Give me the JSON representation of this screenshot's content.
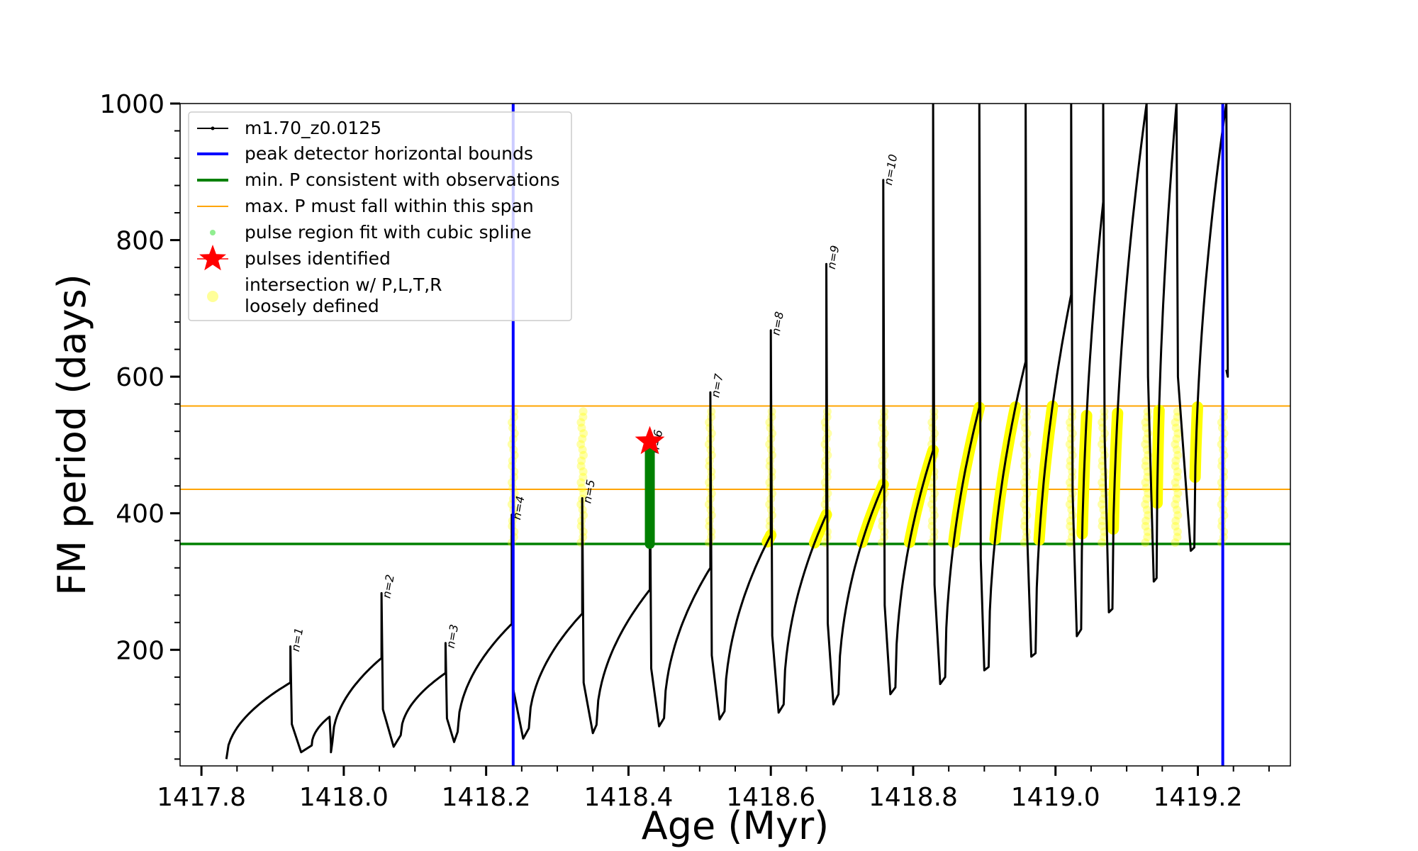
{
  "chart_data": {
    "type": "line",
    "title": "",
    "xlabel": "Age (Myr)",
    "ylabel": "FM period (days)",
    "xlim": [
      1417.77,
      1419.33
    ],
    "ylim": [
      30,
      1000
    ],
    "x_ticks": [
      1417.8,
      1418.0,
      1418.2,
      1418.4,
      1418.6,
      1418.8,
      1419.0,
      1419.2
    ],
    "x_tick_labels": [
      "1417.8",
      "1418.0",
      "1418.2",
      "1418.4",
      "1418.6",
      "1418.8",
      "1419.0",
      "1419.2"
    ],
    "y_ticks": [
      200,
      400,
      600,
      800,
      1000
    ],
    "y_tick_labels": [
      "200",
      "400",
      "600",
      "800",
      "1000"
    ],
    "legend": {
      "placement": "upper-left",
      "entries": [
        {
          "label": "m1.70_z0.0125",
          "color": "#000000",
          "marker": "line-dot"
        },
        {
          "label": "peak detector horizontal bounds",
          "color": "#0000ff",
          "marker": "line"
        },
        {
          "label": "min. P consistent with observations",
          "color": "#008000",
          "marker": "line"
        },
        {
          "label": "max. P must fall within this span",
          "color": "#ffa500",
          "marker": "line"
        },
        {
          "label": "pulse region fit with cubic spline",
          "color": "#90ee90",
          "marker": "dot"
        },
        {
          "label": "pulses identified",
          "color": "#ff0000",
          "marker": "star"
        },
        {
          "label": "intersection w/ P,L,T,R",
          "label2": "loosely defined",
          "color": "#ffff99",
          "marker": "circle"
        }
      ]
    },
    "vertical_lines": [
      {
        "name": "peak detector horizontal bounds",
        "color": "#0000ff",
        "x": [
          1418.238,
          1419.235
        ]
      }
    ],
    "horizontal_lines": [
      {
        "name": "min. P consistent with observations",
        "color": "#008000",
        "y": 355
      },
      {
        "name": "max. P must fall within this span",
        "color": "#ffa500",
        "y": [
          435,
          557
        ]
      }
    ],
    "series_name": "m1.70_z0.0125",
    "pulses": [
      {
        "label": "n=1",
        "start_x": 1417.835,
        "start_y": 40,
        "end_x": 1417.925,
        "end_y": 152,
        "peak_y": 205,
        "min_x": 1417.94,
        "min_y": 50,
        "next_x": 1417.982
      },
      {
        "label": "",
        "start_x": 1417.955,
        "start_y": 60,
        "end_x": 1417.98,
        "end_y": 102,
        "peak_y": 102,
        "min_x": 1417.982,
        "min_y": 50,
        "next_x": 1417.984
      },
      {
        "label": "n=2",
        "start_x": 1417.984,
        "start_y": 65,
        "end_x": 1418.053,
        "end_y": 188,
        "peak_y": 283,
        "min_x": 1418.07,
        "min_y": 58,
        "next_x": 1418.145
      },
      {
        "label": "n=3",
        "start_x": 1418.08,
        "start_y": 75,
        "end_x": 1418.143,
        "end_y": 166,
        "peak_y": 210,
        "min_x": 1418.155,
        "min_y": 65,
        "next_x": 1418.238
      },
      {
        "label": "n=4",
        "start_x": 1418.16,
        "start_y": 80,
        "end_x": 1418.236,
        "end_y": 238,
        "peak_y": 398,
        "min_x": 1418.252,
        "min_y": 70,
        "next_x": 1418.338
      },
      {
        "label": "n=5",
        "start_x": 1418.26,
        "start_y": 85,
        "end_x": 1418.335,
        "end_y": 253,
        "peak_y": 422,
        "min_x": 1418.35,
        "min_y": 78,
        "next_x": 1418.43
      },
      {
        "label": "n=6",
        "start_x": 1418.355,
        "start_y": 90,
        "end_x": 1418.43,
        "end_y": 288,
        "peak_y": 495,
        "min_x": 1418.443,
        "min_y": 88,
        "next_x": 1418.518
      },
      {
        "label": "n=7",
        "start_x": 1418.45,
        "start_y": 100,
        "end_x": 1418.515,
        "end_y": 320,
        "peak_y": 577,
        "min_x": 1418.528,
        "min_y": 98,
        "next_x": 1418.6
      },
      {
        "label": "n=8",
        "start_x": 1418.535,
        "start_y": 110,
        "end_x": 1418.6,
        "end_y": 368,
        "peak_y": 668,
        "min_x": 1418.611,
        "min_y": 108,
        "next_x": 1418.68
      },
      {
        "label": "n=9",
        "start_x": 1418.618,
        "start_y": 120,
        "end_x": 1418.678,
        "end_y": 398,
        "peak_y": 765,
        "min_x": 1418.688,
        "min_y": 120,
        "next_x": 1418.76
      },
      {
        "label": "n=10",
        "start_x": 1418.695,
        "start_y": 135,
        "end_x": 1418.758,
        "end_y": 442,
        "peak_y": 888,
        "min_x": 1418.768,
        "min_y": 135,
        "next_x": 1418.83
      },
      {
        "label": "",
        "start_x": 1418.775,
        "start_y": 145,
        "end_x": 1418.828,
        "end_y": 492,
        "peak_y": 1000,
        "min_x": 1418.838,
        "min_y": 150,
        "next_x": 1418.893
      },
      {
        "label": "",
        "start_x": 1418.845,
        "start_y": 160,
        "end_x": 1418.893,
        "end_y": 555,
        "peak_y": 1000,
        "min_x": 1418.9,
        "min_y": 170,
        "next_x": 1418.958
      },
      {
        "label": "",
        "start_x": 1418.906,
        "start_y": 175,
        "end_x": 1418.958,
        "end_y": 622,
        "peak_y": 1000,
        "min_x": 1418.966,
        "min_y": 190,
        "next_x": 1419.025
      },
      {
        "label": "",
        "start_x": 1418.972,
        "start_y": 195,
        "end_x": 1419.022,
        "end_y": 720,
        "peak_y": 1000,
        "min_x": 1419.03,
        "min_y": 220,
        "next_x": 1419.07
      },
      {
        "label": "",
        "start_x": 1419.036,
        "start_y": 230,
        "end_x": 1419.067,
        "end_y": 856,
        "peak_y": 1000,
        "min_x": 1419.075,
        "min_y": 255,
        "next_x": 1419.14
      },
      {
        "label": "",
        "start_x": 1419.08,
        "start_y": 260,
        "end_x": 1419.128,
        "end_y": 1000,
        "peak_y": 1000,
        "min_x": 1419.138,
        "min_y": 300,
        "next_x": 1419.19
      },
      {
        "label": "",
        "start_x": 1419.142,
        "start_y": 305,
        "end_x": 1419.17,
        "end_y": 1000,
        "peak_y": 1000,
        "min_x": 1419.19,
        "min_y": 345,
        "next_x": 1419.24
      },
      {
        "label": "",
        "start_x": 1419.195,
        "start_y": 350,
        "end_x": 1419.24,
        "end_y": 1000,
        "peak_y": 1000,
        "min_x": 1419.24,
        "min_y": 610,
        "next_x": 1419.245
      }
    ],
    "identified_pulse": {
      "x": 1418.43,
      "y": 505,
      "label": "n=6"
    },
    "spline_fit_region": {
      "x": 1418.43,
      "y": [
        355,
        495
      ]
    },
    "intersection_columns_x": [
      1418.238,
      1418.335,
      1418.515,
      1418.6,
      1418.678,
      1418.758,
      1418.828,
      1418.958,
      1419.022,
      1419.067,
      1419.128,
      1419.17,
      1419.235
    ]
  }
}
